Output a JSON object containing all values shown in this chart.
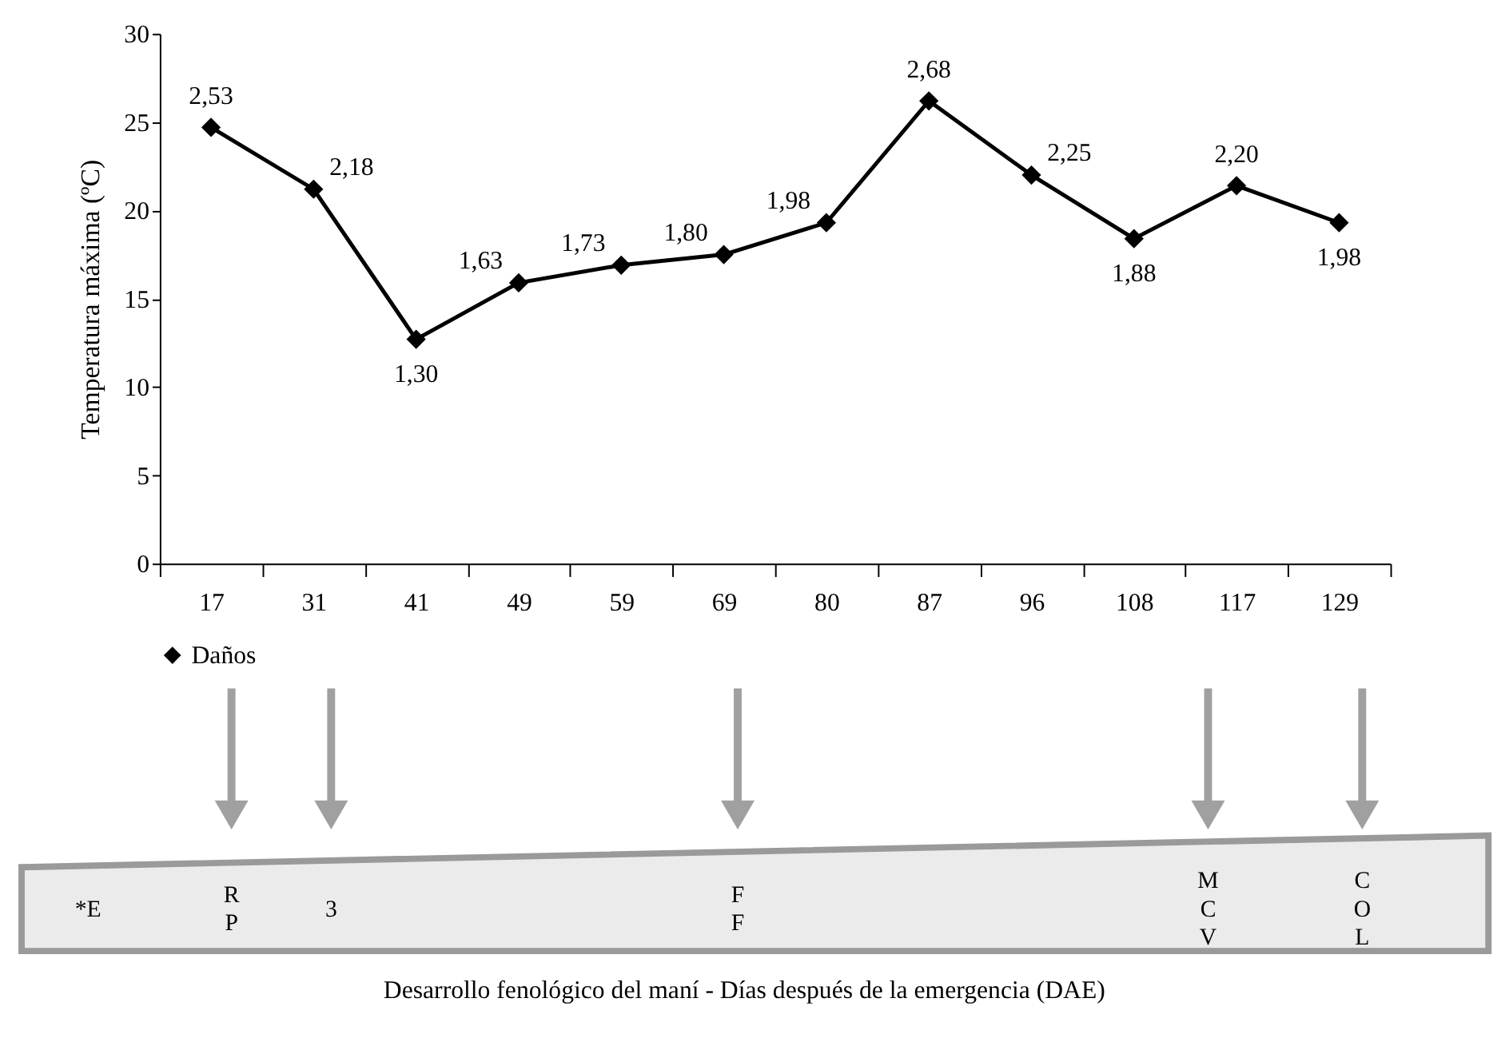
{
  "chart_data": {
    "type": "line",
    "categories": [
      "17",
      "31",
      "41",
      "49",
      "59",
      "69",
      "80",
      "87",
      "96",
      "108",
      "117",
      "129"
    ],
    "series": [
      {
        "name": "Daños",
        "color": "#000000",
        "values": [
          24.7,
          21.2,
          12.7,
          15.9,
          16.9,
          17.5,
          19.3,
          26.2,
          22.0,
          18.4,
          21.4,
          19.3
        ]
      }
    ],
    "ylabel": "Temperatura máxima (ºC)",
    "ylim": [
      0,
      30
    ],
    "yticks": [
      0,
      5,
      10,
      15,
      20,
      25,
      30
    ],
    "grid": false,
    "legend": "bottom",
    "marker": "diamond",
    "line_style": "solid",
    "annotations": [
      {
        "text": "2,53",
        "x": "17",
        "y": 24.7
      },
      {
        "text": "2,18",
        "x": "31",
        "y": 21.2
      },
      {
        "text": "1,30",
        "x": "41",
        "y": 12.7
      },
      {
        "text": "1,63",
        "x": "49",
        "y": 15.9
      },
      {
        "text": "1,73",
        "x": "59",
        "y": 16.9
      },
      {
        "text": "1,80",
        "x": "69",
        "y": 17.5
      },
      {
        "text": "1,98",
        "x": "80",
        "y": 19.3
      },
      {
        "text": "2,68",
        "x": "87",
        "y": 26.2
      },
      {
        "text": "2,25",
        "x": "96",
        "y": 22.0
      },
      {
        "text": "1,88",
        "x": "108",
        "y": 18.4
      },
      {
        "text": "2,20",
        "x": "117",
        "y": 21.4
      },
      {
        "text": "1,98",
        "x": "129",
        "y": 19.3
      },
      "*E",
      "RP",
      "3",
      "FF",
      "MCV",
      "COL",
      "Desarrollo fenológico del maní - Días después de la emergencia (DAE)"
    ]
  }
}
